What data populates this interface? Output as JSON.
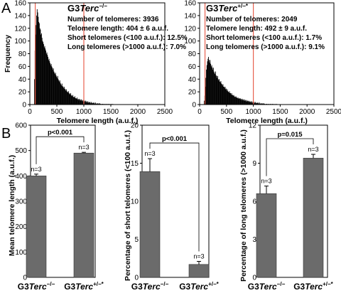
{
  "panel_labels": [
    "A",
    "B"
  ],
  "histograms": [
    {
      "title_prefix": "G3",
      "gene": "Terc",
      "genotype": "−/−",
      "stats": [
        "Number of telomeres: 3936",
        "Telomere length:  404 ± 6 a.u.f.",
        "Short telomeres (<100 a.u.f.): 12.5%",
        "Long telomeres (>1000 a.u.f.): 7.0%"
      ]
    },
    {
      "title_prefix": "G3",
      "gene": "Terc",
      "genotype": "+/−*",
      "stats": [
        "Number of telomeres: 2049",
        "Telomere length:  492 ± 9 a.u.f.",
        "Short telomeres (<100 a.u.f.): 1.7%",
        "Long telomeres (>1000 a.u.f.): 9.1%"
      ]
    }
  ],
  "bar_group_labels": [
    {
      "prefix": "G3",
      "gene": "Terc",
      "genotype": "−/−"
    },
    {
      "prefix": "G3",
      "gene": "Terc",
      "genotype": "+/−*"
    }
  ],
  "chart_data": [
    {
      "type": "bar",
      "panel": "A",
      "xlabel": "Telomere length (a.u.f.)",
      "ylabel": "Frequency",
      "xlim": [
        0,
        2500
      ],
      "ylim": [
        0,
        160
      ],
      "xticks": [
        0,
        500,
        1000,
        1500,
        2000,
        2500
      ],
      "yticks": [
        0,
        20,
        40,
        60,
        80,
        100,
        120,
        140,
        160
      ],
      "reference_lines_x": [
        100,
        1000
      ],
      "reference_line_color": "#e8614f",
      "bin_width": 10,
      "bins_start": 80,
      "values": [
        40,
        85,
        110,
        125,
        140,
        150,
        145,
        138,
        130,
        128,
        120,
        118,
        110,
        112,
        105,
        100,
        98,
        95,
        90,
        92,
        88,
        85,
        80,
        82,
        78,
        75,
        70,
        72,
        68,
        65,
        62,
        64,
        60,
        58,
        55,
        57,
        52,
        50,
        48,
        50,
        46,
        44,
        42,
        45,
        40,
        38,
        36,
        38,
        34,
        32,
        30,
        33,
        29,
        28,
        26,
        28,
        25,
        24,
        22,
        24,
        21,
        20,
        19,
        21,
        18,
        17,
        16,
        18,
        15,
        14,
        13,
        15,
        12,
        12,
        11,
        13,
        10,
        10,
        9,
        11,
        8,
        9,
        7,
        9,
        7,
        8,
        6,
        8,
        6,
        7,
        5,
        7,
        5,
        6,
        4,
        6,
        4,
        5,
        3,
        5,
        3,
        4,
        3,
        4,
        2,
        4,
        2,
        3,
        2,
        3,
        2,
        3,
        1,
        3,
        1,
        2,
        1,
        2,
        1,
        2,
        1,
        2,
        1,
        1,
        0,
        1,
        1,
        1,
        0,
        1,
        0,
        1,
        0,
        1,
        0,
        1,
        0,
        1,
        0,
        1,
        0,
        0,
        1,
        0,
        0,
        1
      ]
    },
    {
      "type": "bar",
      "panel": "A",
      "xlabel": "Telomere length (a.u.f.)",
      "ylabel": "",
      "xlim": [
        0,
        2500
      ],
      "ylim": [
        0,
        160
      ],
      "xticks": [
        0,
        500,
        1000,
        1500,
        2000,
        2500
      ],
      "yticks": [
        0,
        20,
        40,
        60,
        80,
        100,
        120,
        140,
        160
      ],
      "reference_lines_x": [
        100,
        1000
      ],
      "reference_line_color": "#e8614f",
      "bin_width": 10,
      "bins_start": 80,
      "values": [
        6,
        14,
        28,
        42,
        55,
        62,
        68,
        72,
        75,
        70,
        66,
        70,
        64,
        60,
        62,
        58,
        55,
        58,
        52,
        50,
        48,
        52,
        46,
        45,
        42,
        45,
        40,
        38,
        40,
        36,
        35,
        37,
        33,
        32,
        30,
        32,
        28,
        28,
        26,
        28,
        24,
        25,
        22,
        24,
        21,
        20,
        19,
        21,
        18,
        18,
        16,
        18,
        15,
        15,
        14,
        15,
        13,
        12,
        12,
        13,
        11,
        11,
        10,
        11,
        9,
        10,
        9,
        10,
        8,
        9,
        7,
        9,
        7,
        8,
        6,
        8,
        6,
        7,
        5,
        7,
        5,
        6,
        5,
        6,
        4,
        5,
        4,
        5,
        3,
        5,
        3,
        4,
        3,
        4,
        2,
        4,
        2,
        3,
        2,
        3,
        2,
        3,
        1,
        3,
        1,
        2,
        1,
        2,
        1,
        2,
        1,
        2,
        1,
        1,
        0,
        1,
        1,
        1,
        0,
        1,
        0,
        1,
        0,
        1,
        0,
        1,
        0,
        1,
        0,
        1,
        0,
        0,
        1,
        0,
        0,
        1
      ]
    },
    {
      "type": "bar",
      "panel": "B",
      "ylabel": "Mean telomere length (a.u.f.)",
      "ylim": [
        0,
        600
      ],
      "yticks": [
        0,
        100,
        200,
        300,
        400,
        500,
        600
      ],
      "values": [
        400,
        490
      ],
      "errors": [
        7,
        3
      ],
      "n_labels": [
        "n=3",
        "n=3"
      ],
      "significance": "p<0.001"
    },
    {
      "type": "bar",
      "panel": "B",
      "ylabel": "Percentage of short telomeres (<100 a.u.f.)",
      "ylim": [
        0,
        20
      ],
      "yticks": [
        0,
        5,
        10,
        15,
        20
      ],
      "values": [
        13.9,
        1.7
      ],
      "errors": [
        1.7,
        0.4
      ],
      "n_labels": [
        "n=3",
        "n=3"
      ],
      "significance": "p<0.001"
    },
    {
      "type": "bar",
      "panel": "B",
      "ylabel": "Percentage of long telomeres (>1000 a.u.f.)",
      "ylim": [
        0,
        12
      ],
      "yticks": [
        0,
        3,
        6,
        9,
        12
      ],
      "values": [
        6.6,
        9.4
      ],
      "errors": [
        0.6,
        0.3
      ],
      "n_labels": [
        "n=3",
        "n=3"
      ],
      "significance": "p=0.015"
    }
  ]
}
